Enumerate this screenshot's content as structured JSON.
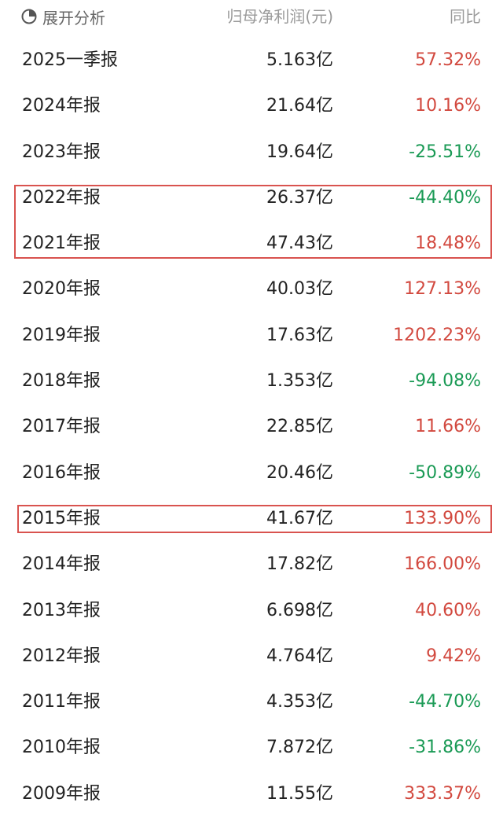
{
  "header": {
    "expand_label": "展开分析",
    "profit_col": "归母净利润(元)",
    "yoy_col": "同比"
  },
  "colors": {
    "up": "#d2493f",
    "down": "#1a9a55",
    "highlight_border": "#d9534f"
  },
  "rows": [
    {
      "period": "2025一季报",
      "profit": "5.163亿",
      "yoy": "57.32%",
      "trend": "up"
    },
    {
      "period": "2024年报",
      "profit": "21.64亿",
      "yoy": "10.16%",
      "trend": "up"
    },
    {
      "period": "2023年报",
      "profit": "19.64亿",
      "yoy": "-25.51%",
      "trend": "down"
    },
    {
      "period": "2022年报",
      "profit": "26.37亿",
      "yoy": "-44.40%",
      "trend": "down",
      "highlighted": true
    },
    {
      "period": "2021年报",
      "profit": "47.43亿",
      "yoy": "18.48%",
      "trend": "up",
      "highlighted": true
    },
    {
      "period": "2020年报",
      "profit": "40.03亿",
      "yoy": "127.13%",
      "trend": "up"
    },
    {
      "period": "2019年报",
      "profit": "17.63亿",
      "yoy": "1202.23%",
      "trend": "up"
    },
    {
      "period": "2018年报",
      "profit": "1.353亿",
      "yoy": "-94.08%",
      "trend": "down"
    },
    {
      "period": "2017年报",
      "profit": "22.85亿",
      "yoy": "11.66%",
      "trend": "up"
    },
    {
      "period": "2016年报",
      "profit": "20.46亿",
      "yoy": "-50.89%",
      "trend": "down"
    },
    {
      "period": "2015年报",
      "profit": "41.67亿",
      "yoy": "133.90%",
      "trend": "up",
      "highlighted": true
    },
    {
      "period": "2014年报",
      "profit": "17.82亿",
      "yoy": "166.00%",
      "trend": "up"
    },
    {
      "period": "2013年报",
      "profit": "6.698亿",
      "yoy": "40.60%",
      "trend": "up"
    },
    {
      "period": "2012年报",
      "profit": "4.764亿",
      "yoy": "9.42%",
      "trend": "up"
    },
    {
      "period": "2011年报",
      "profit": "4.353亿",
      "yoy": "-44.70%",
      "trend": "down"
    },
    {
      "period": "2010年报",
      "profit": "7.872亿",
      "yoy": "-31.86%",
      "trend": "down"
    },
    {
      "period": "2009年报",
      "profit": "11.55亿",
      "yoy": "333.37%",
      "trend": "up"
    }
  ]
}
